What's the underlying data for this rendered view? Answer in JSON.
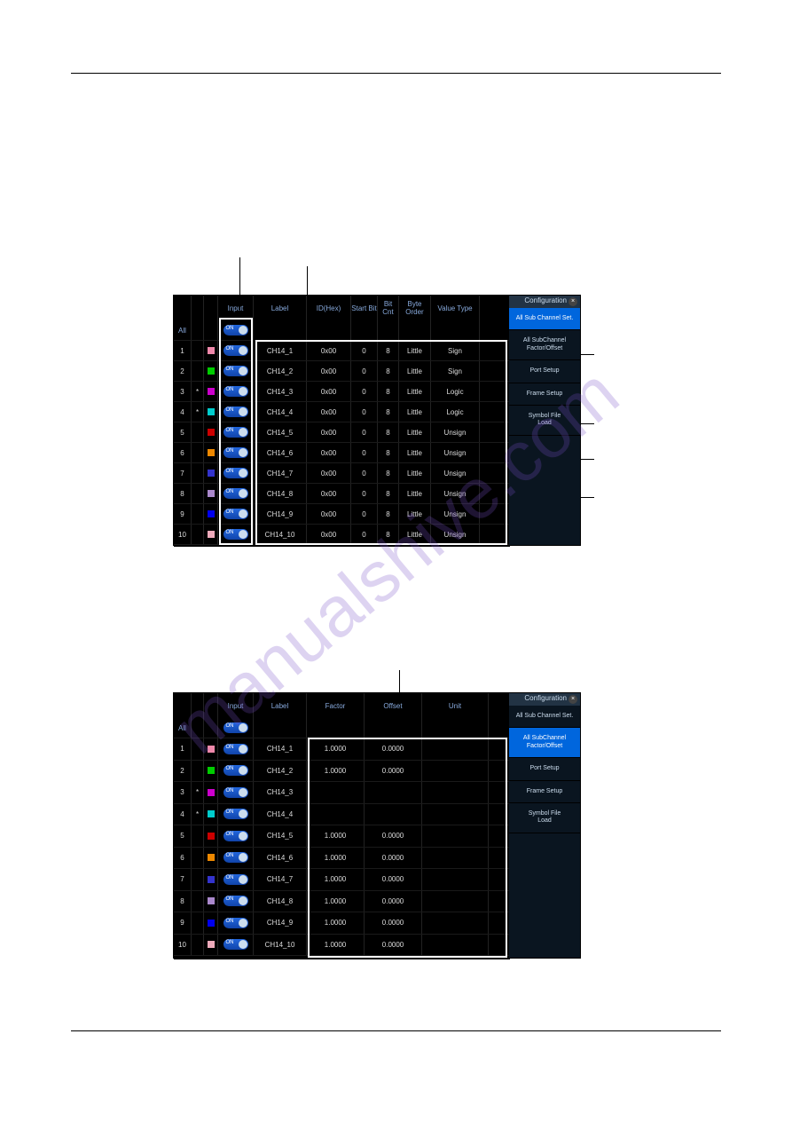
{
  "watermark": "manualshive.com",
  "panel1": {
    "headers": {
      "input": "Input",
      "label": "Label",
      "id": "ID(Hex)",
      "start_bit": "Start\nBit",
      "bit_cnt": "Bit\nCnt",
      "byte_order": "Byte\nOrder",
      "value_type": "Value\nType"
    },
    "all_label": "All",
    "rows": [
      {
        "idx": "1",
        "mk": "",
        "color": "#ee88aa",
        "label": "CH14_1",
        "id": "0x00",
        "sbit": "0",
        "bcnt": "8",
        "order": "Little",
        "vtype": "Sign"
      },
      {
        "idx": "2",
        "mk": "",
        "color": "#00cc00",
        "label": "CH14_2",
        "id": "0x00",
        "sbit": "0",
        "bcnt": "8",
        "order": "Little",
        "vtype": "Sign"
      },
      {
        "idx": "3",
        "mk": "*",
        "color": "#cc00cc",
        "label": "CH14_3",
        "id": "0x00",
        "sbit": "0",
        "bcnt": "8",
        "order": "Little",
        "vtype": "Logic"
      },
      {
        "idx": "4",
        "mk": "*",
        "color": "#00cccc",
        "label": "CH14_4",
        "id": "0x00",
        "sbit": "0",
        "bcnt": "8",
        "order": "Little",
        "vtype": "Logic"
      },
      {
        "idx": "5",
        "mk": "",
        "color": "#cc0000",
        "label": "CH14_5",
        "id": "0x00",
        "sbit": "0",
        "bcnt": "8",
        "order": "Little",
        "vtype": "Unsign"
      },
      {
        "idx": "6",
        "mk": "",
        "color": "#ee8800",
        "label": "CH14_6",
        "id": "0x00",
        "sbit": "0",
        "bcnt": "8",
        "order": "Little",
        "vtype": "Unsign"
      },
      {
        "idx": "7",
        "mk": "",
        "color": "#3333cc",
        "label": "CH14_7",
        "id": "0x00",
        "sbit": "0",
        "bcnt": "8",
        "order": "Little",
        "vtype": "Unsign"
      },
      {
        "idx": "8",
        "mk": "",
        "color": "#aa88cc",
        "label": "CH14_8",
        "id": "0x00",
        "sbit": "0",
        "bcnt": "8",
        "order": "Little",
        "vtype": "Unsign"
      },
      {
        "idx": "9",
        "mk": "",
        "color": "#0000ee",
        "label": "CH14_9",
        "id": "0x00",
        "sbit": "0",
        "bcnt": "8",
        "order": "Little",
        "vtype": "Unsign"
      },
      {
        "idx": "10",
        "mk": "",
        "color": "#eeaabb",
        "label": "CH14_10",
        "id": "0x00",
        "sbit": "0",
        "bcnt": "8",
        "order": "Little",
        "vtype": "Unsign"
      }
    ],
    "sidebar": {
      "title": "Configuration",
      "btns": [
        {
          "label": "All Sub Channel Set.",
          "active": true
        },
        {
          "label": "All SubChannel\nFactor/Offset",
          "active": false
        },
        {
          "label": "Port Setup",
          "active": false
        },
        {
          "label": "Frame Setup",
          "active": false
        },
        {
          "label": "Symbol File\nLoad",
          "active": false
        }
      ]
    }
  },
  "panel2": {
    "headers": {
      "input": "Input",
      "label": "Label",
      "factor": "Factor",
      "offset": "Offset",
      "unit": "Unit"
    },
    "all_label": "All",
    "rows": [
      {
        "idx": "1",
        "mk": "",
        "color": "#ee88aa",
        "label": "CH14_1",
        "factor": "1.0000",
        "offset": "0.0000",
        "unit": ""
      },
      {
        "idx": "2",
        "mk": "",
        "color": "#00cc00",
        "label": "CH14_2",
        "factor": "1.0000",
        "offset": "0.0000",
        "unit": ""
      },
      {
        "idx": "3",
        "mk": "*",
        "color": "#cc00cc",
        "label": "CH14_3",
        "factor": "",
        "offset": "",
        "unit": ""
      },
      {
        "idx": "4",
        "mk": "*",
        "color": "#00cccc",
        "label": "CH14_4",
        "factor": "",
        "offset": "",
        "unit": ""
      },
      {
        "idx": "5",
        "mk": "",
        "color": "#cc0000",
        "label": "CH14_5",
        "factor": "1.0000",
        "offset": "0.0000",
        "unit": ""
      },
      {
        "idx": "6",
        "mk": "",
        "color": "#ee8800",
        "label": "CH14_6",
        "factor": "1.0000",
        "offset": "0.0000",
        "unit": ""
      },
      {
        "idx": "7",
        "mk": "",
        "color": "#3333cc",
        "label": "CH14_7",
        "factor": "1.0000",
        "offset": "0.0000",
        "unit": ""
      },
      {
        "idx": "8",
        "mk": "",
        "color": "#aa88cc",
        "label": "CH14_8",
        "factor": "1.0000",
        "offset": "0.0000",
        "unit": ""
      },
      {
        "idx": "9",
        "mk": "",
        "color": "#0000ee",
        "label": "CH14_9",
        "factor": "1.0000",
        "offset": "0.0000",
        "unit": ""
      },
      {
        "idx": "10",
        "mk": "",
        "color": "#eeaabb",
        "label": "CH14_10",
        "factor": "1.0000",
        "offset": "0.0000",
        "unit": ""
      }
    ],
    "sidebar": {
      "title": "Configuration",
      "btns": [
        {
          "label": "All Sub Channel Set.",
          "active": false
        },
        {
          "label": "All SubChannel\nFactor/Offset",
          "active": true
        },
        {
          "label": "Port Setup",
          "active": false
        },
        {
          "label": "Frame Setup",
          "active": false
        },
        {
          "label": "Symbol File\nLoad",
          "active": false
        }
      ]
    }
  }
}
